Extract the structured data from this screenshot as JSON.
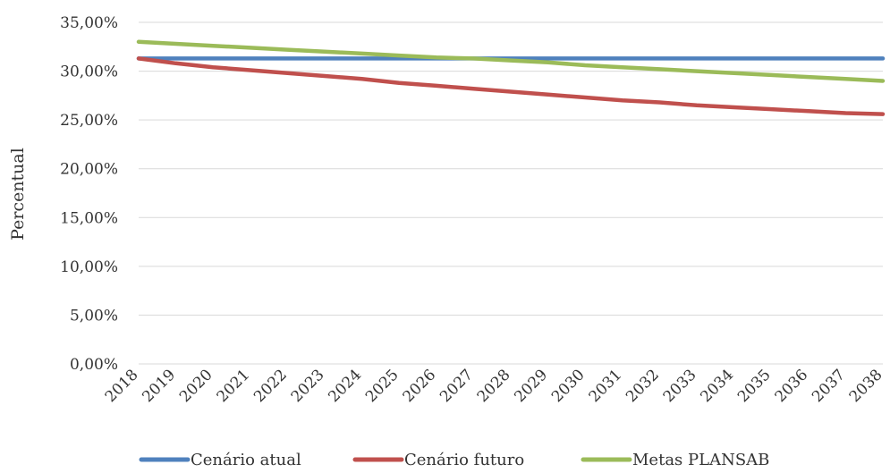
{
  "chart_data": {
    "type": "line",
    "title": "",
    "xlabel": "",
    "ylabel": "Percentual",
    "ylim": [
      0,
      35
    ],
    "y_ticks": [
      "0,00%",
      "5,00%",
      "10,00%",
      "15,00%",
      "20,00%",
      "25,00%",
      "30,00%",
      "35,00%"
    ],
    "grid": true,
    "legend_position": "bottom",
    "categories": [
      "2018",
      "2019",
      "2020",
      "2021",
      "2022",
      "2023",
      "2024",
      "2025",
      "2026",
      "2027",
      "2028",
      "2029",
      "2030",
      "2031",
      "2032",
      "2033",
      "2034",
      "2035",
      "2036",
      "2037",
      "2038"
    ],
    "series": [
      {
        "name": "Cenário atual",
        "color": "#4f81bd",
        "values": [
          31.3,
          31.3,
          31.3,
          31.3,
          31.3,
          31.3,
          31.3,
          31.3,
          31.3,
          31.3,
          31.3,
          31.3,
          31.3,
          31.3,
          31.3,
          31.3,
          31.3,
          31.3,
          31.3,
          31.3,
          31.3
        ]
      },
      {
        "name": "Cenário futuro",
        "color": "#c0504d",
        "values": [
          31.3,
          30.8,
          30.4,
          30.1,
          29.8,
          29.5,
          29.2,
          28.8,
          28.5,
          28.2,
          27.9,
          27.6,
          27.3,
          27.0,
          26.8,
          26.5,
          26.3,
          26.1,
          25.9,
          25.7,
          25.6
        ]
      },
      {
        "name": "Metas PLANSAB",
        "color": "#9bbb59",
        "values": [
          33.0,
          32.8,
          32.6,
          32.4,
          32.2,
          32.0,
          31.8,
          31.6,
          31.4,
          31.3,
          31.1,
          30.9,
          30.6,
          30.4,
          30.2,
          30.0,
          29.8,
          29.6,
          29.4,
          29.2,
          29.0
        ]
      }
    ]
  }
}
